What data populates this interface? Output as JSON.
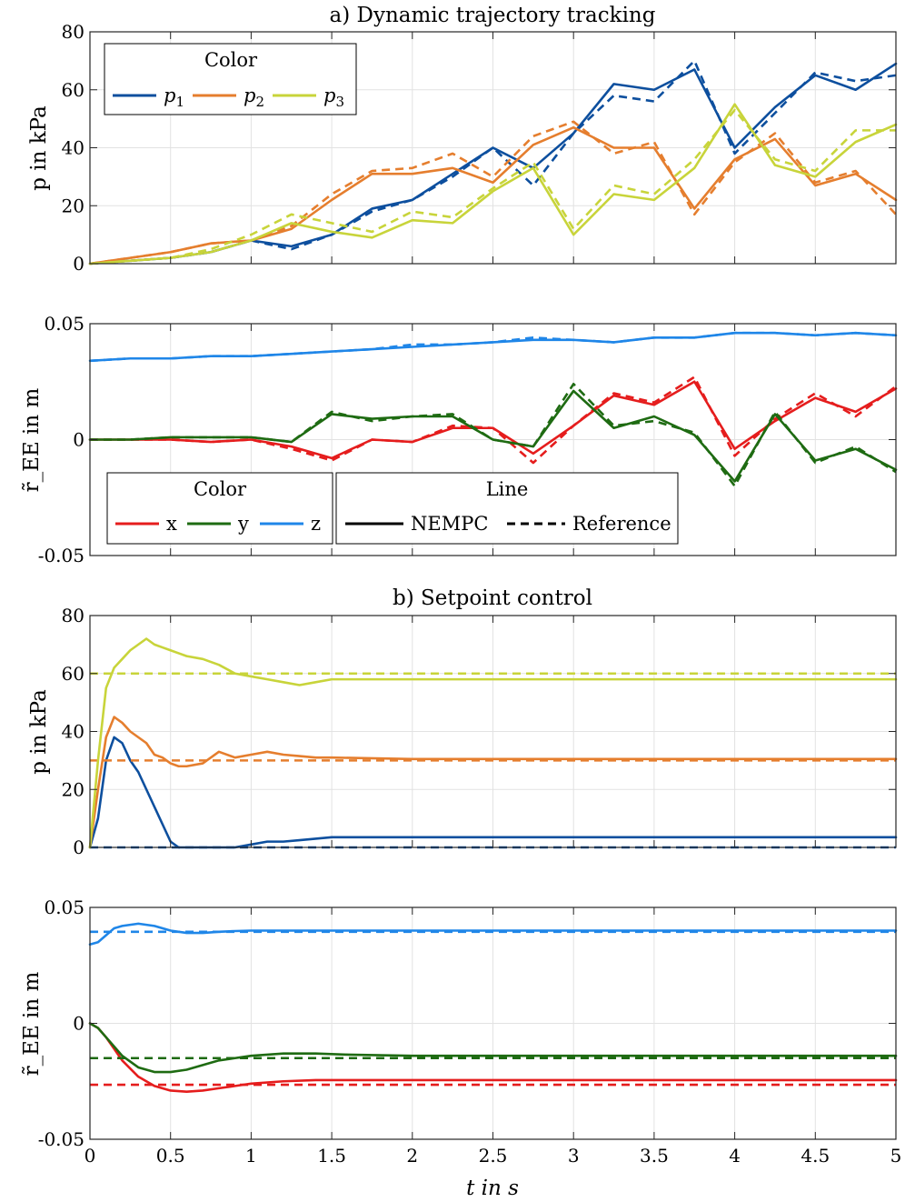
{
  "figure": {
    "xlabel": "t in s",
    "x_ticks": [
      "0",
      "0.5",
      "1",
      "1.5",
      "2",
      "2.5",
      "3",
      "3.5",
      "4",
      "4.5",
      "5"
    ]
  },
  "colors": {
    "p1": "#0d4f9e",
    "p2": "#e57e2e",
    "p3": "#c8d43a",
    "x": "#e51d1d",
    "y": "#1e6b12",
    "z": "#1f86e8"
  },
  "legends": {
    "color_title": "Color",
    "line_title": "Line",
    "pressure_entries": [
      {
        "base": "p",
        "sub": "1",
        "color_key": "p1"
      },
      {
        "base": "p",
        "sub": "2",
        "color_key": "p2"
      },
      {
        "base": "p",
        "sub": "3",
        "color_key": "p3"
      }
    ],
    "position_entries": [
      {
        "label": "x",
        "color_key": "x"
      },
      {
        "label": "y",
        "color_key": "y"
      },
      {
        "label": "z",
        "color_key": "z"
      }
    ],
    "line_entries": [
      {
        "label": "NEMPC",
        "style": "solid"
      },
      {
        "label": "Reference",
        "style": "dashed"
      }
    ]
  },
  "chart_data": [
    {
      "id": "a_pressure",
      "type": "line",
      "title": "a) Dynamic trajectory tracking",
      "ylabel": "p in kPa",
      "xlim": [
        0,
        5
      ],
      "ylim": [
        0,
        80
      ],
      "y_ticks": [
        "0",
        "20",
        "40",
        "60",
        "80"
      ],
      "grid": true,
      "legend": "top-left",
      "x": [
        0,
        0.25,
        0.5,
        0.75,
        1,
        1.25,
        1.5,
        1.75,
        2,
        2.25,
        2.5,
        2.75,
        3,
        3.25,
        3.5,
        3.75,
        4,
        4.25,
        4.5,
        4.75,
        5
      ],
      "series": [
        {
          "color_key": "p1",
          "style": "solid",
          "values": [
            0,
            1,
            2,
            4,
            8,
            6,
            10,
            19,
            22,
            31,
            40,
            33,
            45,
            62,
            60,
            67,
            40,
            54,
            65,
            60,
            69
          ]
        },
        {
          "color_key": "p1",
          "style": "dashed",
          "values": [
            0,
            1,
            2,
            4,
            8,
            5,
            10,
            18,
            22,
            30,
            40,
            27,
            45,
            58,
            56,
            70,
            38,
            52,
            66,
            63,
            65
          ]
        },
        {
          "color_key": "p2",
          "style": "solid",
          "values": [
            0,
            2,
            4,
            7,
            8,
            12,
            22,
            31,
            31,
            33,
            28,
            41,
            47,
            40,
            40,
            19,
            36,
            43,
            27,
            31,
            22
          ]
        },
        {
          "color_key": "p2",
          "style": "dashed",
          "values": [
            0,
            2,
            4,
            7,
            8,
            13,
            24,
            32,
            33,
            38,
            30,
            44,
            49,
            38,
            42,
            17,
            35,
            45,
            28,
            32,
            17
          ]
        },
        {
          "color_key": "p3",
          "style": "solid",
          "values": [
            0,
            1,
            2,
            4,
            8,
            14,
            11,
            9,
            15,
            14,
            25,
            33,
            10,
            24,
            22,
            33,
            55,
            34,
            30,
            42,
            48
          ]
        },
        {
          "color_key": "p3",
          "style": "dashed",
          "values": [
            0,
            1,
            2,
            5,
            10,
            17,
            14,
            11,
            18,
            16,
            26,
            35,
            12,
            27,
            24,
            36,
            53,
            36,
            32,
            46,
            46
          ]
        }
      ]
    },
    {
      "id": "a_position",
      "type": "line",
      "ylabel": "r̃_EE in m",
      "xlim": [
        0,
        5
      ],
      "ylim": [
        -0.05,
        0.05
      ],
      "y_ticks": [
        "-0.05",
        "0",
        "0.05"
      ],
      "grid": true,
      "legend": "bottom-left",
      "x": [
        0,
        0.25,
        0.5,
        0.75,
        1,
        1.25,
        1.5,
        1.75,
        2,
        2.25,
        2.5,
        2.75,
        3,
        3.25,
        3.5,
        3.75,
        4,
        4.25,
        4.5,
        4.75,
        5
      ],
      "series": [
        {
          "color_key": "x",
          "style": "solid",
          "values": [
            0,
            0,
            0,
            -0.001,
            0,
            -0.003,
            -0.008,
            0,
            -0.001,
            0.005,
            0.005,
            -0.006,
            0.006,
            0.019,
            0.015,
            0.025,
            -0.004,
            0.008,
            0.018,
            0.012,
            0.022
          ]
        },
        {
          "color_key": "x",
          "style": "dashed",
          "values": [
            0,
            0,
            0,
            -0.001,
            0,
            -0.004,
            -0.009,
            0,
            -0.001,
            0.006,
            0.005,
            -0.01,
            0.006,
            0.02,
            0.016,
            0.027,
            -0.007,
            0.009,
            0.02,
            0.01,
            0.023
          ]
        },
        {
          "color_key": "y",
          "style": "solid",
          "values": [
            0,
            0,
            0.001,
            0.001,
            0.001,
            -0.001,
            0.011,
            0.009,
            0.01,
            0.01,
            0,
            -0.003,
            0.021,
            0.005,
            0.01,
            0.002,
            -0.018,
            0.011,
            -0.009,
            -0.004,
            -0.013
          ]
        },
        {
          "color_key": "y",
          "style": "dashed",
          "values": [
            0,
            0,
            0.001,
            0.001,
            0.001,
            -0.001,
            0.012,
            0.008,
            0.01,
            0.011,
            0,
            -0.003,
            0.024,
            0.006,
            0.008,
            0.003,
            -0.02,
            0.012,
            -0.01,
            -0.003,
            -0.014
          ]
        },
        {
          "color_key": "z",
          "style": "solid",
          "values": [
            0.034,
            0.035,
            0.035,
            0.036,
            0.036,
            0.037,
            0.038,
            0.039,
            0.04,
            0.041,
            0.042,
            0.043,
            0.043,
            0.042,
            0.044,
            0.044,
            0.046,
            0.046,
            0.045,
            0.046,
            0.045
          ]
        },
        {
          "color_key": "z",
          "style": "dashed",
          "values": [
            0.034,
            0.035,
            0.035,
            0.036,
            0.036,
            0.037,
            0.038,
            0.039,
            0.041,
            0.041,
            0.042,
            0.044,
            0.043,
            0.042,
            0.044,
            0.044,
            0.046,
            0.046,
            0.045,
            0.046,
            0.045
          ]
        }
      ]
    },
    {
      "id": "b_pressure",
      "type": "line",
      "title": "b) Setpoint control",
      "ylabel": "p in kPa",
      "xlim": [
        0,
        5
      ],
      "ylim": [
        0,
        80
      ],
      "y_ticks": [
        "0",
        "20",
        "40",
        "60",
        "80"
      ],
      "grid": true,
      "x": [
        0,
        0.05,
        0.1,
        0.15,
        0.2,
        0.25,
        0.3,
        0.35,
        0.4,
        0.45,
        0.5,
        0.55,
        0.6,
        0.7,
        0.8,
        0.9,
        1,
        1.1,
        1.2,
        1.3,
        1.4,
        1.5,
        2,
        3,
        4,
        5
      ],
      "series": [
        {
          "color_key": "p1",
          "style": "solid",
          "values": [
            0,
            10,
            30,
            38,
            36,
            30,
            26,
            20,
            14,
            8,
            2,
            0,
            0,
            0,
            0,
            0,
            1,
            2,
            2,
            2.5,
            3,
            3.5,
            3.5,
            3.5,
            3.5,
            3.5
          ]
        },
        {
          "color_key": "p1",
          "style": "dashed",
          "values": [
            0,
            0,
            0,
            0,
            0,
            0,
            0,
            0,
            0,
            0,
            0,
            0,
            0,
            0,
            0,
            0,
            0,
            0,
            0,
            0,
            0,
            0,
            0,
            0,
            0,
            0
          ]
        },
        {
          "color_key": "p2",
          "style": "solid",
          "values": [
            0,
            20,
            38,
            45,
            43,
            40,
            38,
            36,
            32,
            31,
            29,
            28,
            28,
            29,
            33,
            31,
            32,
            33,
            32,
            31.5,
            31,
            31,
            30.5,
            30.5,
            30.5,
            30.5
          ]
        },
        {
          "color_key": "p2",
          "style": "dashed",
          "values": [
            30,
            30,
            30,
            30,
            30,
            30,
            30,
            30,
            30,
            30,
            30,
            30,
            30,
            30,
            30,
            30,
            30,
            30,
            30,
            30,
            30,
            30,
            30,
            30,
            30,
            30
          ]
        },
        {
          "color_key": "p3",
          "style": "solid",
          "values": [
            0,
            30,
            55,
            62,
            65,
            68,
            70,
            72,
            70,
            69,
            68,
            67,
            66,
            65,
            63,
            60,
            59,
            58,
            57,
            56,
            57,
            58,
            58,
            58,
            58,
            58
          ]
        },
        {
          "color_key": "p3",
          "style": "dashed",
          "values": [
            60,
            60,
            60,
            60,
            60,
            60,
            60,
            60,
            60,
            60,
            60,
            60,
            60,
            60,
            60,
            60,
            60,
            60,
            60,
            60,
            60,
            60,
            60,
            60,
            60,
            60
          ]
        }
      ]
    },
    {
      "id": "b_position",
      "type": "line",
      "ylabel": "r̃_EE in m",
      "xlim": [
        0,
        5
      ],
      "ylim": [
        -0.05,
        0.05
      ],
      "y_ticks": [
        "-0.05",
        "0",
        "0.05"
      ],
      "grid": true,
      "x": [
        0,
        0.05,
        0.1,
        0.15,
        0.2,
        0.3,
        0.4,
        0.5,
        0.6,
        0.7,
        0.8,
        0.9,
        1.0,
        1.2,
        1.4,
        1.6,
        2,
        3,
        4,
        5
      ],
      "series": [
        {
          "color_key": "x",
          "style": "solid",
          "values": [
            0,
            -0.002,
            -0.006,
            -0.011,
            -0.016,
            -0.023,
            -0.027,
            -0.029,
            -0.0295,
            -0.029,
            -0.028,
            -0.027,
            -0.026,
            -0.025,
            -0.0245,
            -0.0245,
            -0.0245,
            -0.0245,
            -0.0245,
            -0.0245
          ]
        },
        {
          "color_key": "x",
          "style": "dashed",
          "values": [
            -0.0265,
            -0.0265,
            -0.0265,
            -0.0265,
            -0.0265,
            -0.0265,
            -0.0265,
            -0.0265,
            -0.0265,
            -0.0265,
            -0.0265,
            -0.0265,
            -0.0265,
            -0.0265,
            -0.0265,
            -0.0265,
            -0.0265,
            -0.0265,
            -0.0265,
            -0.0265
          ]
        },
        {
          "color_key": "y",
          "style": "solid",
          "values": [
            0,
            -0.002,
            -0.006,
            -0.01,
            -0.014,
            -0.019,
            -0.021,
            -0.021,
            -0.02,
            -0.018,
            -0.016,
            -0.015,
            -0.014,
            -0.013,
            -0.013,
            -0.0135,
            -0.014,
            -0.014,
            -0.014,
            -0.014
          ]
        },
        {
          "color_key": "y",
          "style": "dashed",
          "values": [
            -0.015,
            -0.015,
            -0.015,
            -0.015,
            -0.015,
            -0.015,
            -0.015,
            -0.015,
            -0.015,
            -0.015,
            -0.015,
            -0.015,
            -0.015,
            -0.015,
            -0.015,
            -0.015,
            -0.015,
            -0.015,
            -0.015,
            -0.015
          ]
        },
        {
          "color_key": "z",
          "style": "solid",
          "values": [
            0.034,
            0.035,
            0.038,
            0.041,
            0.042,
            0.043,
            0.042,
            0.04,
            0.039,
            0.039,
            0.0395,
            0.0398,
            0.04,
            0.04,
            0.04,
            0.04,
            0.04,
            0.04,
            0.04,
            0.04
          ]
        },
        {
          "color_key": "z",
          "style": "dashed",
          "values": [
            0.0395,
            0.0395,
            0.0395,
            0.0395,
            0.0395,
            0.0395,
            0.0395,
            0.0395,
            0.0395,
            0.0395,
            0.0395,
            0.0395,
            0.0395,
            0.0395,
            0.0395,
            0.0395,
            0.0395,
            0.0395,
            0.0395,
            0.0395
          ]
        }
      ]
    }
  ]
}
